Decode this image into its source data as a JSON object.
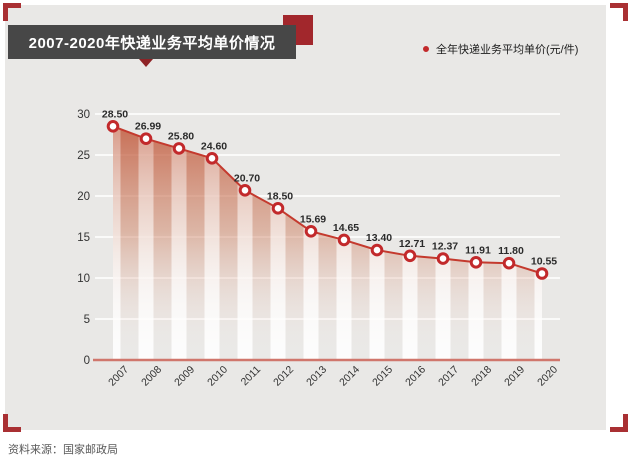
{
  "header": {
    "title": "2007-2020年快递业务平均单价情况"
  },
  "legend": {
    "label": "全年快递业务平均单价(元/件)"
  },
  "source": {
    "text": "资料来源：国家邮政局"
  },
  "colors": {
    "accent_red": "#a93033",
    "square_red": "#a2272c",
    "caret_red": "#8e2326",
    "title_bg": "#474747",
    "title_text": "#ffffff",
    "panel_bg": "#e9e8e6",
    "line_red": "#c43a2e",
    "marker_ring": "#c2292b",
    "axis_salmon": "#d0766c",
    "area_top": "#c05436",
    "area_mid": "#cf8264",
    "grid_white": "#ffffff",
    "tick_dark": "#333333",
    "label_dark": "#2b2b2b",
    "source_gray": "#595959"
  },
  "chart_data": {
    "type": "line",
    "title": "2007-2020年快递业务平均单价情况",
    "categories": [
      "2007",
      "2008",
      "2009",
      "2010",
      "2011",
      "2012",
      "2013",
      "2014",
      "2015",
      "2016",
      "2017",
      "2018",
      "2019",
      "2020"
    ],
    "series": [
      {
        "name": "全年快递业务平均单价(元/件)",
        "values": [
          28.5,
          26.99,
          25.8,
          24.6,
          20.7,
          18.5,
          15.69,
          14.65,
          13.4,
          12.71,
          12.37,
          11.91,
          11.8,
          10.55
        ]
      }
    ],
    "data_labels": [
      "28.50",
      "26.99",
      "25.80",
      "24.60",
      "20.70",
      "18.50",
      "15.69",
      "14.65",
      "13.40",
      "12.71",
      "12.37",
      "11.91",
      "11.80",
      "10.55"
    ],
    "xlabel": "",
    "ylabel": "",
    "ylim": [
      0,
      30
    ],
    "yticks": [
      0,
      5,
      10,
      15,
      20,
      25,
      30
    ],
    "grid": true,
    "legend_position": "top-right"
  }
}
